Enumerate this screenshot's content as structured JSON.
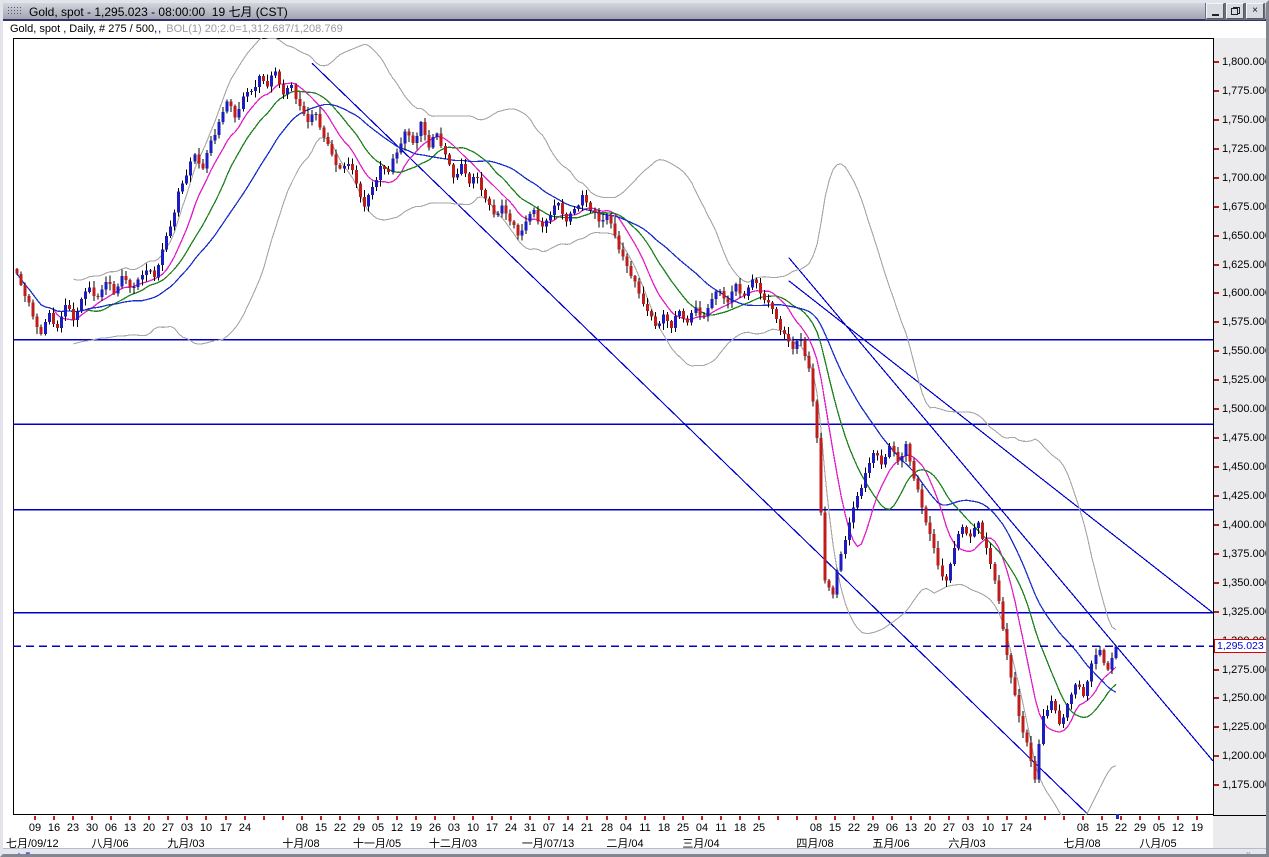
{
  "window": {
    "title": "Gold, spot - 1,295.023 - 08:00:00  19 七月 (CST)",
    "controls": [
      "minimize",
      "restore",
      "close"
    ]
  },
  "header": {
    "series_info": "Gold, spot , Daily, # 275 / 500,",
    "separator": ",",
    "indicator_info": "BOL(1) 20;2.0=1,312.687/1,208.769"
  },
  "price_label": {
    "text": "1,295.023",
    "value": 1295.023
  },
  "bottom": {
    "scroll_up": "▲",
    "scroll_down": "▼",
    "close_x": "x"
  },
  "colors": {
    "candle_up": "#1c1cc0",
    "candle_down": "#c01c1c",
    "wick": "#000000",
    "ma_fast": "#e020c8",
    "ma_mid": "#1e821e",
    "ma_slow": "#1830c8",
    "bollinger": "#a6a6a6",
    "object_blue": "#0000c8",
    "axis_tick_red": "#b52020",
    "axis_bg": "#ebebed"
  },
  "chart_data": {
    "type": "candlestick",
    "instrument": "Gold, spot",
    "period": "Daily",
    "bars_shown": "275 / 500",
    "last_price": 1295.023,
    "last_time": "08:00:00 19 七月 (CST)",
    "bollinger": {
      "period": 20,
      "deviation": 2.0,
      "upper": 1312.687,
      "lower": 1208.769,
      "window_bars": 28
    },
    "y_axis": {
      "max": 1800,
      "min": 1175,
      "step": 25,
      "labels": [
        "1,800.000",
        "1,775.000",
        "1,750.000",
        "1,725.000",
        "1,700.000",
        "1,675.000",
        "1,650.000",
        "1,625.000",
        "1,600.000",
        "1,575.000",
        "1,550.000",
        "1,525.000",
        "1,500.000",
        "1,475.000",
        "1,450.000",
        "1,425.000",
        "1,400.000",
        "1,375.000",
        "1,350.000",
        "1,325.000",
        "1,300.000",
        "1,275.000",
        "1,250.000",
        "1,225.000",
        "1,200.000",
        "1,175.000"
      ]
    },
    "x_axis": {
      "units_total": 62,
      "day_ticks": [
        [
          0,
          "09"
        ],
        [
          1,
          "16"
        ],
        [
          2,
          "23"
        ],
        [
          3,
          "30"
        ],
        [
          4,
          "06"
        ],
        [
          5,
          "13"
        ],
        [
          6,
          "20"
        ],
        [
          7,
          "27"
        ],
        [
          8,
          "03"
        ],
        [
          9,
          "10"
        ],
        [
          10,
          "17"
        ],
        [
          11,
          "24"
        ],
        [
          14,
          "08"
        ],
        [
          15,
          "15"
        ],
        [
          16,
          "22"
        ],
        [
          17,
          "29"
        ],
        [
          18,
          "05"
        ],
        [
          19,
          "12"
        ],
        [
          20,
          "19"
        ],
        [
          21,
          "26"
        ],
        [
          22,
          "03"
        ],
        [
          23,
          "10"
        ],
        [
          24,
          "17"
        ],
        [
          25,
          "24"
        ],
        [
          26,
          "31"
        ],
        [
          27,
          "07"
        ],
        [
          28,
          "14"
        ],
        [
          29,
          "21"
        ],
        [
          30,
          "28"
        ],
        [
          31,
          "04"
        ],
        [
          32,
          "11"
        ],
        [
          33,
          "18"
        ],
        [
          34,
          "25"
        ],
        [
          35,
          "04"
        ],
        [
          36,
          "11"
        ],
        [
          37,
          "18"
        ],
        [
          38,
          "25"
        ],
        [
          41,
          "08"
        ],
        [
          42,
          "15"
        ],
        [
          43,
          "22"
        ],
        [
          44,
          "29"
        ],
        [
          45,
          "06"
        ],
        [
          46,
          "13"
        ],
        [
          47,
          "20"
        ],
        [
          48,
          "27"
        ],
        [
          49,
          "03"
        ],
        [
          50,
          "10"
        ],
        [
          51,
          "17"
        ],
        [
          52,
          "24"
        ],
        [
          55,
          "08"
        ],
        [
          56,
          "15"
        ],
        [
          57,
          "22"
        ],
        [
          58,
          "29"
        ],
        [
          59,
          "05"
        ],
        [
          60,
          "12"
        ],
        [
          61,
          "19"
        ]
      ],
      "month_labels": [
        [
          0,
          "七月/09/12"
        ],
        [
          4,
          "八月/06"
        ],
        [
          8,
          "九月/03"
        ],
        [
          14,
          "十月/08"
        ],
        [
          18,
          "十一月/05"
        ],
        [
          22,
          "十二月/03"
        ],
        [
          27,
          "一月/07/13"
        ],
        [
          31,
          "二月/04"
        ],
        [
          35,
          "三月/04"
        ],
        [
          41,
          "四月/08"
        ],
        [
          45,
          "五月/06"
        ],
        [
          49,
          "六月/03"
        ],
        [
          55,
          "七月/08"
        ],
        [
          59,
          "八月/05"
        ]
      ]
    },
    "closes": [
      1617,
      1598,
      1580,
      1565,
      1583,
      1570,
      1590,
      1577,
      1595,
      1605,
      1597,
      1610,
      1600,
      1615,
      1605,
      1612,
      1620,
      1614,
      1638,
      1658,
      1688,
      1702,
      1720,
      1708,
      1732,
      1748,
      1766,
      1752,
      1770,
      1775,
      1788,
      1779,
      1792,
      1772,
      1780,
      1762,
      1748,
      1755,
      1735,
      1720,
      1708,
      1712,
      1695,
      1675,
      1692,
      1710,
      1705,
      1722,
      1740,
      1730,
      1748,
      1726,
      1738,
      1720,
      1700,
      1712,
      1695,
      1700,
      1682,
      1668,
      1676,
      1662,
      1650,
      1662,
      1672,
      1658,
      1668,
      1678,
      1662,
      1673,
      1685,
      1672,
      1662,
      1668,
      1650,
      1632,
      1615,
      1600,
      1585,
      1572,
      1582,
      1570,
      1585,
      1575,
      1588,
      1580,
      1595,
      1602,
      1592,
      1608,
      1598,
      1612,
      1600,
      1592,
      1578,
      1565,
      1552,
      1560,
      1535,
      1475,
      1352,
      1340,
      1375,
      1402,
      1425,
      1445,
      1462,
      1452,
      1468,
      1455,
      1470,
      1440,
      1415,
      1392,
      1365,
      1352,
      1380,
      1398,
      1390,
      1402,
      1380,
      1352,
      1310,
      1268,
      1235,
      1212,
      1180,
      1235,
      1248,
      1228,
      1245,
      1262,
      1252,
      1280,
      1292,
      1275,
      1295.023
    ],
    "horizontal_lines": [
      {
        "price": 1560
      },
      {
        "price": 1487
      },
      {
        "price": 1413
      },
      {
        "price": 1324
      }
    ],
    "dashed_line": {
      "price": 1295.023
    },
    "trendlines": [
      {
        "b1": 73,
        "p1": 1799,
        "b2": 265,
        "p2": 1150
      },
      {
        "b1": 191,
        "p1": 1611,
        "b2": 296,
        "p2": 1324
      },
      {
        "b1": 191,
        "p1": 1631,
        "b2": 296,
        "p2": 1196
      }
    ],
    "moving_averages": [
      {
        "period": 10,
        "color_key": "ma_fast"
      },
      {
        "period": 18,
        "color_key": "ma_mid"
      },
      {
        "period": 30,
        "color_key": "ma_slow"
      }
    ]
  }
}
